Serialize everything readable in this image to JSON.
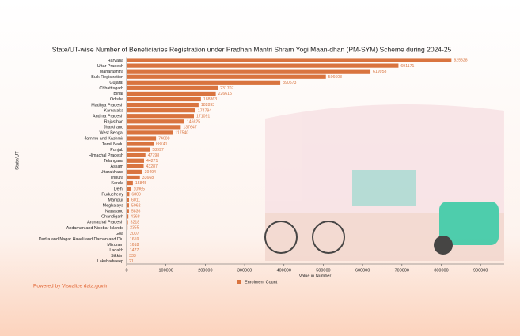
{
  "chart_data": {
    "type": "hbar",
    "title": "State/UT-wise Number of Beneficiaries Registration under Pradhan Mantri Shram Yogi Maan-dhan (PM-SYM) Scheme during 2024-25",
    "x_label": "Value in Number",
    "y_label": "State/UT",
    "footer": "Powered by Visualize data.gov.in",
    "categories": [
      "Haryana",
      "Uttar Pradesh",
      "Maharashtra",
      "Bulk Registration",
      "Gujarat",
      "Chhattisgarh",
      "Bihar",
      "Odisha",
      "Madhya Pradesh",
      "Karnataka",
      "Andhra Pradesh",
      "Rajasthan",
      "Jharkhand",
      "West Bengal",
      "Jammu and Kashmir",
      "Tamil Nadu",
      "Punjab",
      "Himachal Pradesh",
      "Telangana",
      "Assam",
      "Uttarakhand",
      "Tripura",
      "Kerala",
      "Delhi",
      "Puducherry",
      "Manipur",
      "Meghalaya",
      "Nagaland",
      "Chandigarh",
      "Arunachal Pradesh",
      "Andaman and Nicobar Islands",
      "Goa",
      "Dadra and Nagar Haveli and Daman and Diu",
      "Mizoram",
      "Ladakh",
      "Sikkim",
      "Lakshadweep"
    ],
    "series": [
      {
        "name": "Enrolment Count",
        "color": "#d9743f",
        "values": [
          825828,
          691171,
          619958,
          506603,
          390573,
          231707,
          226615,
          188863,
          182893,
          174794,
          171091,
          146625,
          137647,
          117540,
          74688,
          68741,
          58997,
          47798,
          44271,
          43287,
          39494,
          33668,
          15845,
          10965,
          6809,
          6011,
          5962,
          5836,
          4368,
          3218,
          2355,
          2007,
          1659,
          1618,
          1477,
          333,
          21
        ]
      }
    ],
    "xlim": [
      0,
      960000
    ],
    "xticks": [
      0,
      100000,
      200000,
      300000,
      400000,
      500000,
      600000,
      700000,
      800000,
      900000
    ]
  }
}
